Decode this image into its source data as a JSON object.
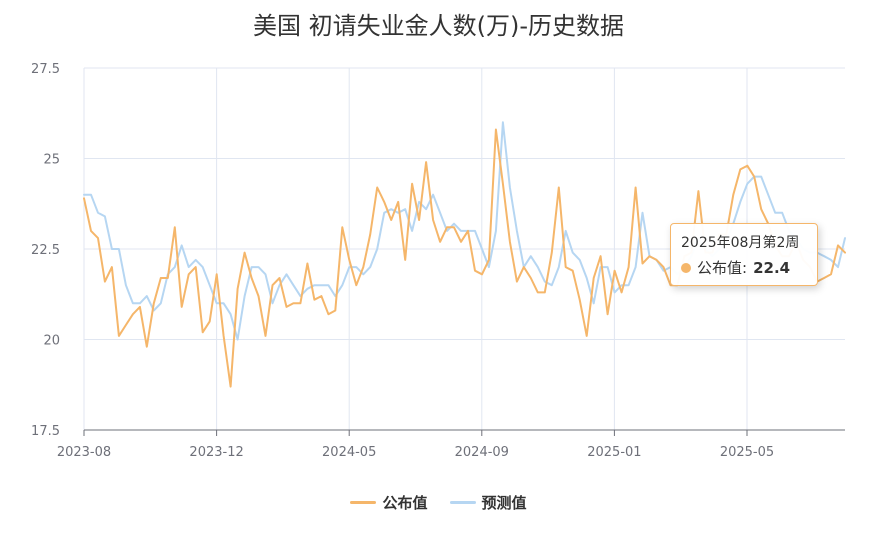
{
  "chart_data": {
    "type": "line",
    "title": "美国 初请失业金人数(万)-历史数据",
    "ylim": [
      17.5,
      27.5
    ],
    "y_ticks": [
      "27.5",
      "25",
      "22.5",
      "20",
      "17.5"
    ],
    "x_ticks": [
      "2023-08",
      "2023-12",
      "2024-05",
      "2024-09",
      "2025-01",
      "2025-05"
    ],
    "grid": true,
    "legend_position": "bottom",
    "series": [
      {
        "name": "公布值",
        "color": "#f5b66a",
        "values": [
          23.9,
          23.0,
          22.8,
          21.6,
          22.0,
          20.1,
          20.4,
          20.7,
          20.9,
          19.8,
          21.0,
          21.7,
          21.7,
          23.1,
          20.9,
          21.8,
          22.0,
          20.2,
          20.5,
          21.8,
          20.1,
          18.7,
          21.4,
          22.4,
          21.7,
          21.2,
          20.1,
          21.5,
          21.7,
          20.9,
          21.0,
          21.0,
          22.1,
          21.1,
          21.2,
          20.7,
          20.8,
          23.1,
          22.2,
          21.5,
          22.0,
          22.9,
          24.2,
          23.8,
          23.3,
          23.8,
          22.2,
          24.3,
          23.3,
          24.9,
          23.3,
          22.7,
          23.1,
          23.1,
          22.7,
          23.0,
          21.9,
          21.8,
          22.2,
          25.8,
          24.3,
          22.7,
          21.6,
          22.0,
          21.7,
          21.3,
          21.3,
          22.4,
          24.2,
          22.0,
          21.9,
          21.1,
          20.1,
          21.7,
          22.3,
          20.7,
          21.9,
          21.3,
          22.0,
          24.2,
          22.1,
          22.3,
          22.2,
          22.0,
          21.5,
          21.5,
          22.3,
          22.4,
          24.1,
          22.4,
          22.4,
          22.9,
          22.9,
          24.0,
          24.7,
          24.8,
          24.5,
          23.6,
          23.2,
          22.6,
          22.3,
          22.3,
          22.7,
          22.2,
          22.0,
          21.6,
          21.7,
          21.8,
          22.6,
          22.4
        ],
        "last_label": "22.4"
      },
      {
        "name": "预测值",
        "color": "#b6d6f2",
        "values": [
          24.0,
          24.0,
          23.5,
          23.4,
          22.5,
          22.5,
          21.5,
          21.0,
          21.0,
          21.2,
          20.8,
          21.0,
          21.8,
          22.0,
          22.6,
          22.0,
          22.2,
          22.0,
          21.5,
          21.0,
          21.0,
          20.7,
          20.0,
          21.2,
          22.0,
          22.0,
          21.8,
          21.0,
          21.5,
          21.8,
          21.5,
          21.2,
          21.4,
          21.5,
          21.5,
          21.5,
          21.2,
          21.5,
          22.0,
          22.0,
          21.8,
          22.0,
          22.5,
          23.5,
          23.6,
          23.5,
          23.6,
          23.0,
          23.8,
          23.6,
          24.0,
          23.5,
          23.0,
          23.2,
          23.0,
          23.0,
          23.0,
          22.5,
          22.0,
          23.0,
          26.0,
          24.2,
          23.0,
          22.0,
          22.3,
          22.0,
          21.6,
          21.5,
          22.0,
          23.0,
          22.4,
          22.2,
          21.7,
          21.0,
          22.0,
          22.0,
          21.3,
          21.5,
          21.5,
          22.0,
          23.5,
          22.3,
          22.2,
          21.9,
          22.0,
          21.8,
          22.0,
          22.3,
          22.8,
          22.5,
          22.3,
          22.5,
          22.7,
          23.2,
          23.8,
          24.3,
          24.5,
          24.5,
          24.0,
          23.5,
          23.5,
          23.0,
          22.8,
          22.5,
          22.4,
          22.4,
          22.3,
          22.2,
          22.0,
          22.8
        ]
      }
    ]
  },
  "tooltip": {
    "title": "2025年08月第2周",
    "series_name": "公布值",
    "separator": ":",
    "value": "22.4",
    "dot_color": "#f5b66a"
  },
  "legend": [
    {
      "name": "公布值",
      "color": "#f5b66a"
    },
    {
      "name": "预测值",
      "color": "#b6d6f2"
    }
  ]
}
